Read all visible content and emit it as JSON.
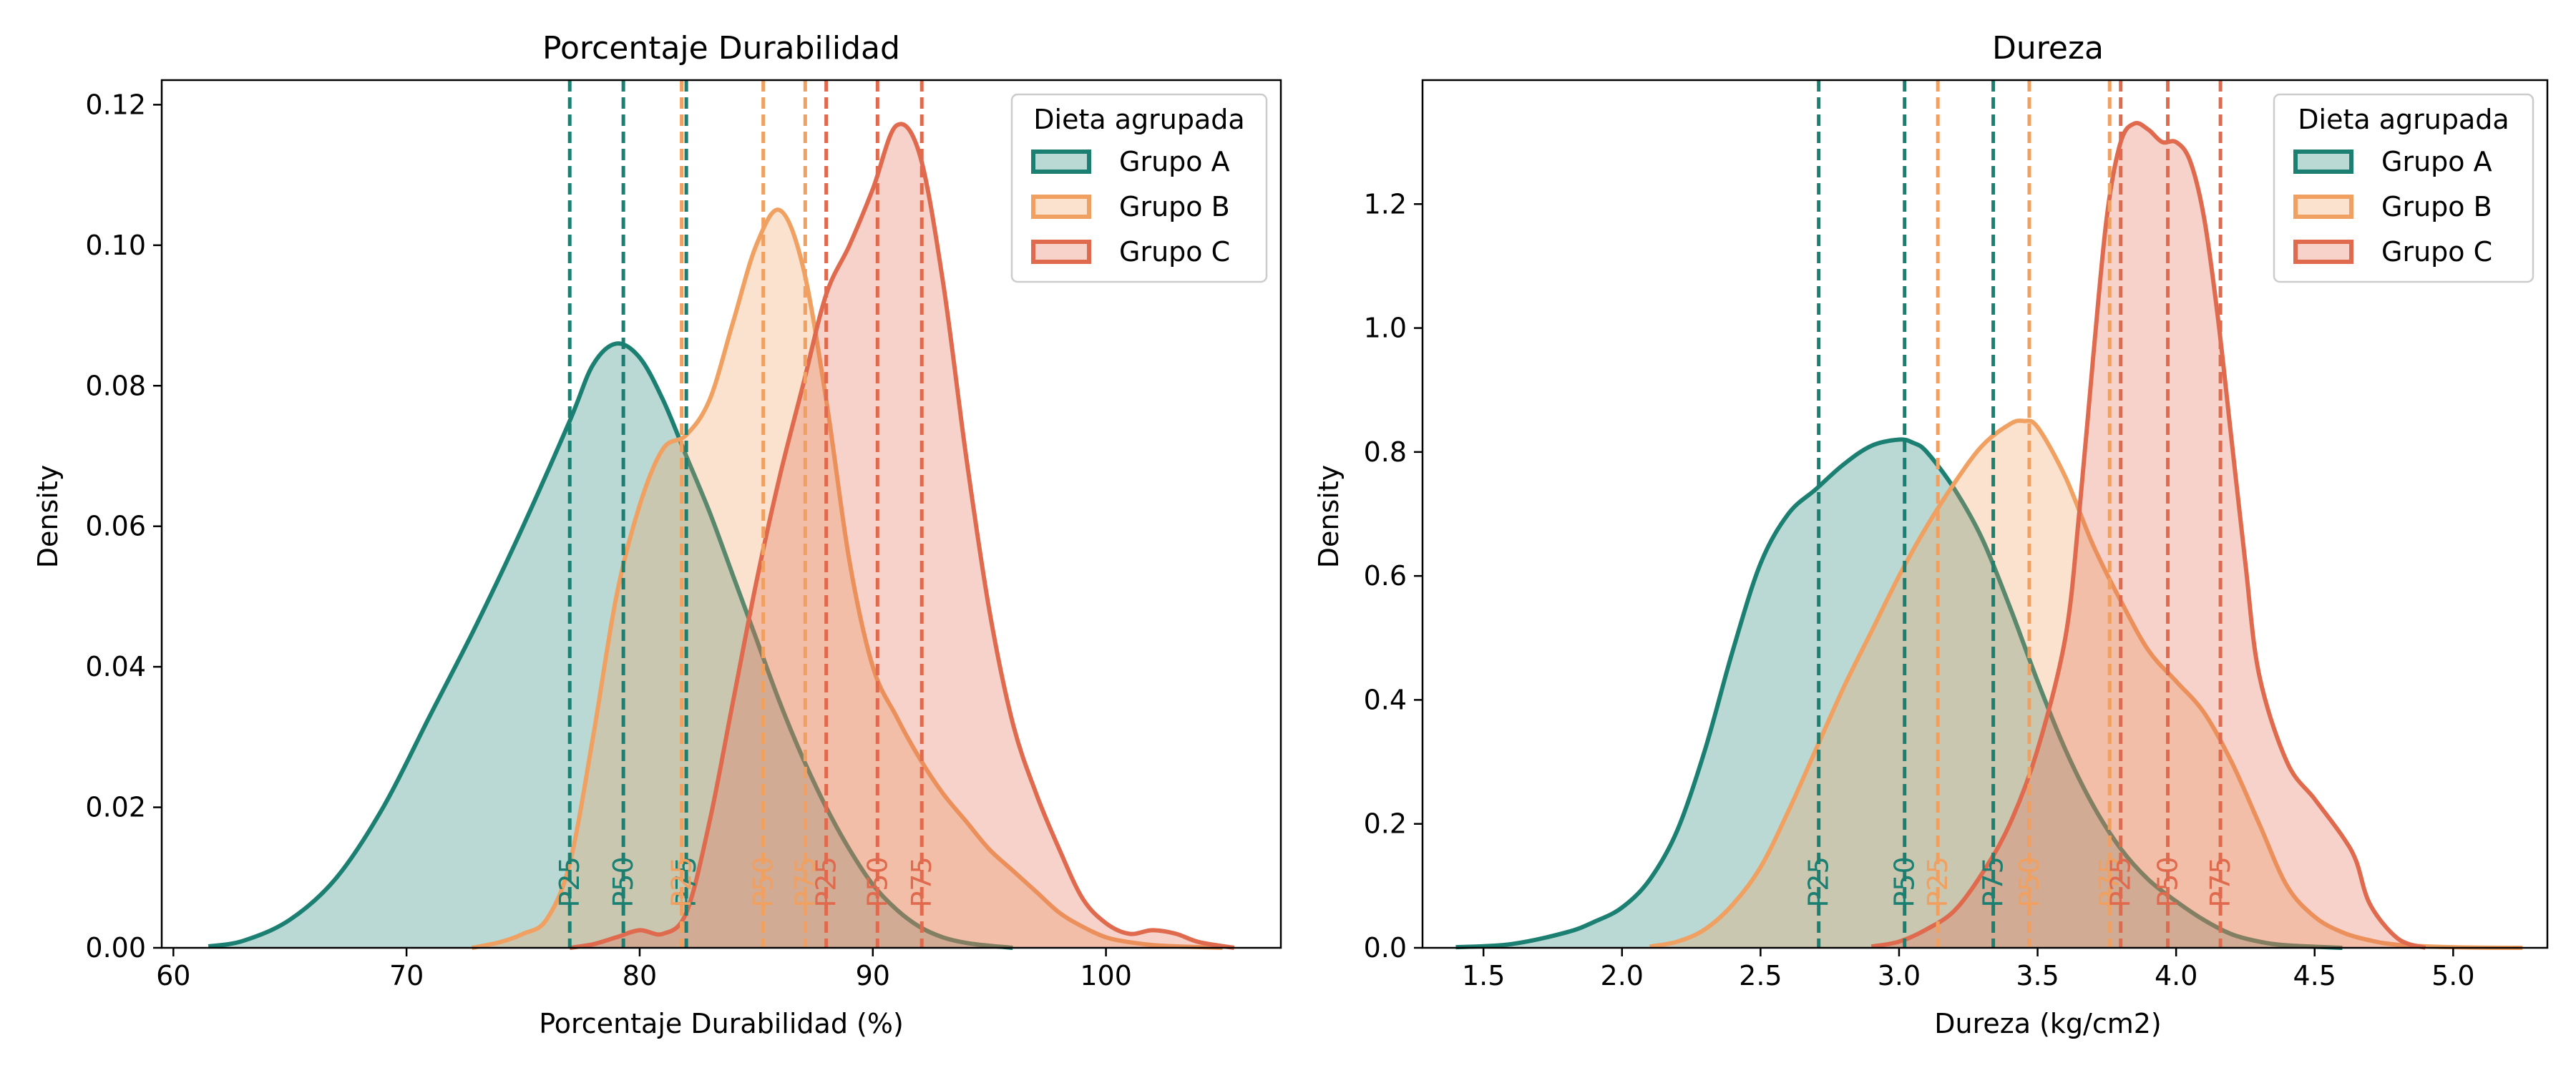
{
  "chart_data": [
    {
      "type": "area",
      "title": "Porcentaje Durabilidad",
      "xlabel": "Porcentaje Durabilidad (%)",
      "ylabel": "Density",
      "xlim": [
        59.5,
        107.5
      ],
      "ylim": [
        0,
        0.1235
      ],
      "xticks": [
        60,
        70,
        80,
        90,
        100
      ],
      "xtick_labels": [
        "60",
        "70",
        "80",
        "90",
        "100"
      ],
      "yticks": [
        0,
        0.02,
        0.04,
        0.06,
        0.08,
        0.1,
        0.12
      ],
      "ytick_labels": [
        "0.00",
        "0.02",
        "0.04",
        "0.06",
        "0.08",
        "0.10",
        "0.12"
      ],
      "legend": {
        "title": "Dieta agrupada",
        "position": "top-right",
        "entries": [
          "Grupo A",
          "Grupo B",
          "Grupo C"
        ]
      },
      "series": [
        {
          "name": "Grupo A",
          "color": "#1b7f72",
          "x": [
            61.5,
            63,
            65,
            67,
            69,
            71,
            73,
            75,
            77,
            78,
            79,
            80,
            81,
            82,
            83,
            84,
            85,
            86,
            87,
            88,
            89,
            90,
            91,
            92,
            93,
            94,
            95,
            96
          ],
          "y": [
            0.0002,
            0.001,
            0.004,
            0.01,
            0.02,
            0.033,
            0.046,
            0.06,
            0.075,
            0.083,
            0.086,
            0.084,
            0.078,
            0.07,
            0.062,
            0.053,
            0.044,
            0.035,
            0.027,
            0.02,
            0.014,
            0.009,
            0.0055,
            0.003,
            0.0015,
            0.0007,
            0.0003,
            0
          ],
          "percentiles": {
            "P25": 77.0,
            "P50": 79.3,
            "P75": 82.0
          }
        },
        {
          "name": "Grupo B",
          "color": "#f0a060",
          "x": [
            72.8,
            74,
            75,
            76,
            77,
            78,
            79,
            80,
            81,
            82,
            83,
            84,
            85,
            86,
            87,
            88,
            89,
            90,
            91,
            92,
            93,
            94,
            95,
            96,
            97,
            98,
            99,
            100,
            101,
            102,
            103,
            104,
            105
          ],
          "y": [
            0,
            0.0008,
            0.002,
            0.004,
            0.012,
            0.03,
            0.05,
            0.063,
            0.071,
            0.073,
            0.078,
            0.089,
            0.1,
            0.105,
            0.097,
            0.078,
            0.055,
            0.04,
            0.033,
            0.027,
            0.022,
            0.018,
            0.014,
            0.011,
            0.008,
            0.005,
            0.003,
            0.0015,
            0.0008,
            0.0004,
            0.0002,
            0.0001,
            0
          ],
          "percentiles": {
            "P25": 81.8,
            "P50": 85.3,
            "P75": 87.1
          }
        },
        {
          "name": "Grupo C",
          "color": "#e06a4e",
          "x": [
            77,
            78,
            79,
            80,
            81,
            82,
            83,
            84,
            85,
            86,
            87,
            88,
            89,
            90,
            91,
            92,
            93,
            94,
            95,
            96,
            97,
            98,
            99,
            100,
            101,
            102,
            103,
            104,
            105.5
          ],
          "y": [
            0,
            0.0005,
            0.0015,
            0.0025,
            0.002,
            0.005,
            0.018,
            0.035,
            0.052,
            0.067,
            0.08,
            0.093,
            0.1,
            0.108,
            0.117,
            0.113,
            0.095,
            0.07,
            0.048,
            0.032,
            0.022,
            0.014,
            0.007,
            0.0035,
            0.002,
            0.0025,
            0.002,
            0.0008,
            0
          ],
          "percentiles": {
            "P25": 88.0,
            "P50": 90.2,
            "P75": 92.1
          }
        }
      ]
    },
    {
      "type": "area",
      "title": "Dureza",
      "xlabel": "Dureza (kg/cm2)",
      "ylabel": "Density",
      "xlim": [
        1.28,
        5.34
      ],
      "ylim": [
        0,
        1.4
      ],
      "xticks": [
        1.5,
        2.0,
        2.5,
        3.0,
        3.5,
        4.0,
        4.5,
        5.0
      ],
      "xtick_labels": [
        "1.5",
        "2.0",
        "2.5",
        "3.0",
        "3.5",
        "4.0",
        "4.5",
        "5.0"
      ],
      "yticks": [
        0,
        0.2,
        0.4,
        0.6,
        0.8,
        1.0,
        1.2
      ],
      "ytick_labels": [
        "0.0",
        "0.2",
        "0.4",
        "0.6",
        "0.8",
        "1.0",
        "1.2"
      ],
      "legend": {
        "title": "Dieta agrupada",
        "position": "top-right",
        "entries": [
          "Grupo A",
          "Grupo B",
          "Grupo C"
        ]
      },
      "series": [
        {
          "name": "Grupo A",
          "color": "#1b7f72",
          "x": [
            1.4,
            1.6,
            1.8,
            1.9,
            2.0,
            2.1,
            2.2,
            2.3,
            2.4,
            2.5,
            2.6,
            2.7,
            2.8,
            2.9,
            3.0,
            3.05,
            3.1,
            3.2,
            3.3,
            3.4,
            3.5,
            3.6,
            3.7,
            3.8,
            3.9,
            4.0,
            4.1,
            4.2,
            4.3,
            4.4,
            4.6
          ],
          "y": [
            0.001,
            0.006,
            0.025,
            0.042,
            0.065,
            0.11,
            0.19,
            0.32,
            0.48,
            0.62,
            0.7,
            0.74,
            0.78,
            0.81,
            0.82,
            0.815,
            0.8,
            0.74,
            0.66,
            0.55,
            0.43,
            0.32,
            0.23,
            0.16,
            0.11,
            0.075,
            0.045,
            0.022,
            0.01,
            0.004,
            0
          ],
          "percentiles": {
            "P25": 2.71,
            "P50": 3.02,
            "P75": 3.34
          }
        },
        {
          "name": "Grupo B",
          "color": "#f0a060",
          "x": [
            2.1,
            2.2,
            2.3,
            2.4,
            2.5,
            2.6,
            2.7,
            2.8,
            2.9,
            3.0,
            3.1,
            3.2,
            3.3,
            3.4,
            3.45,
            3.5,
            3.6,
            3.7,
            3.8,
            3.9,
            4.0,
            4.1,
            4.2,
            4.3,
            4.4,
            4.5,
            4.6,
            4.7,
            4.8,
            5.0,
            5.25
          ],
          "y": [
            0.002,
            0.01,
            0.03,
            0.07,
            0.13,
            0.22,
            0.32,
            0.42,
            0.51,
            0.6,
            0.68,
            0.75,
            0.81,
            0.845,
            0.85,
            0.84,
            0.76,
            0.65,
            0.56,
            0.48,
            0.43,
            0.38,
            0.3,
            0.2,
            0.1,
            0.05,
            0.025,
            0.012,
            0.005,
            0.001,
            0
          ],
          "percentiles": {
            "P25": 3.14,
            "P50": 3.47,
            "P75": 3.76
          }
        },
        {
          "name": "Grupo C",
          "color": "#e06a4e",
          "x": [
            2.9,
            3.0,
            3.1,
            3.2,
            3.3,
            3.4,
            3.5,
            3.6,
            3.65,
            3.7,
            3.75,
            3.8,
            3.85,
            3.9,
            3.95,
            4.0,
            4.05,
            4.1,
            4.15,
            4.2,
            4.25,
            4.3,
            4.4,
            4.5,
            4.6,
            4.65,
            4.7,
            4.8,
            4.9
          ],
          "y": [
            0.002,
            0.01,
            0.03,
            0.06,
            0.12,
            0.2,
            0.32,
            0.5,
            0.7,
            0.95,
            1.18,
            1.3,
            1.33,
            1.32,
            1.3,
            1.3,
            1.27,
            1.18,
            1.02,
            0.82,
            0.62,
            0.44,
            0.3,
            0.24,
            0.18,
            0.14,
            0.07,
            0.015,
            0
          ],
          "percentiles": {
            "P25": 3.8,
            "P50": 3.97,
            "P75": 4.16
          }
        }
      ]
    }
  ]
}
